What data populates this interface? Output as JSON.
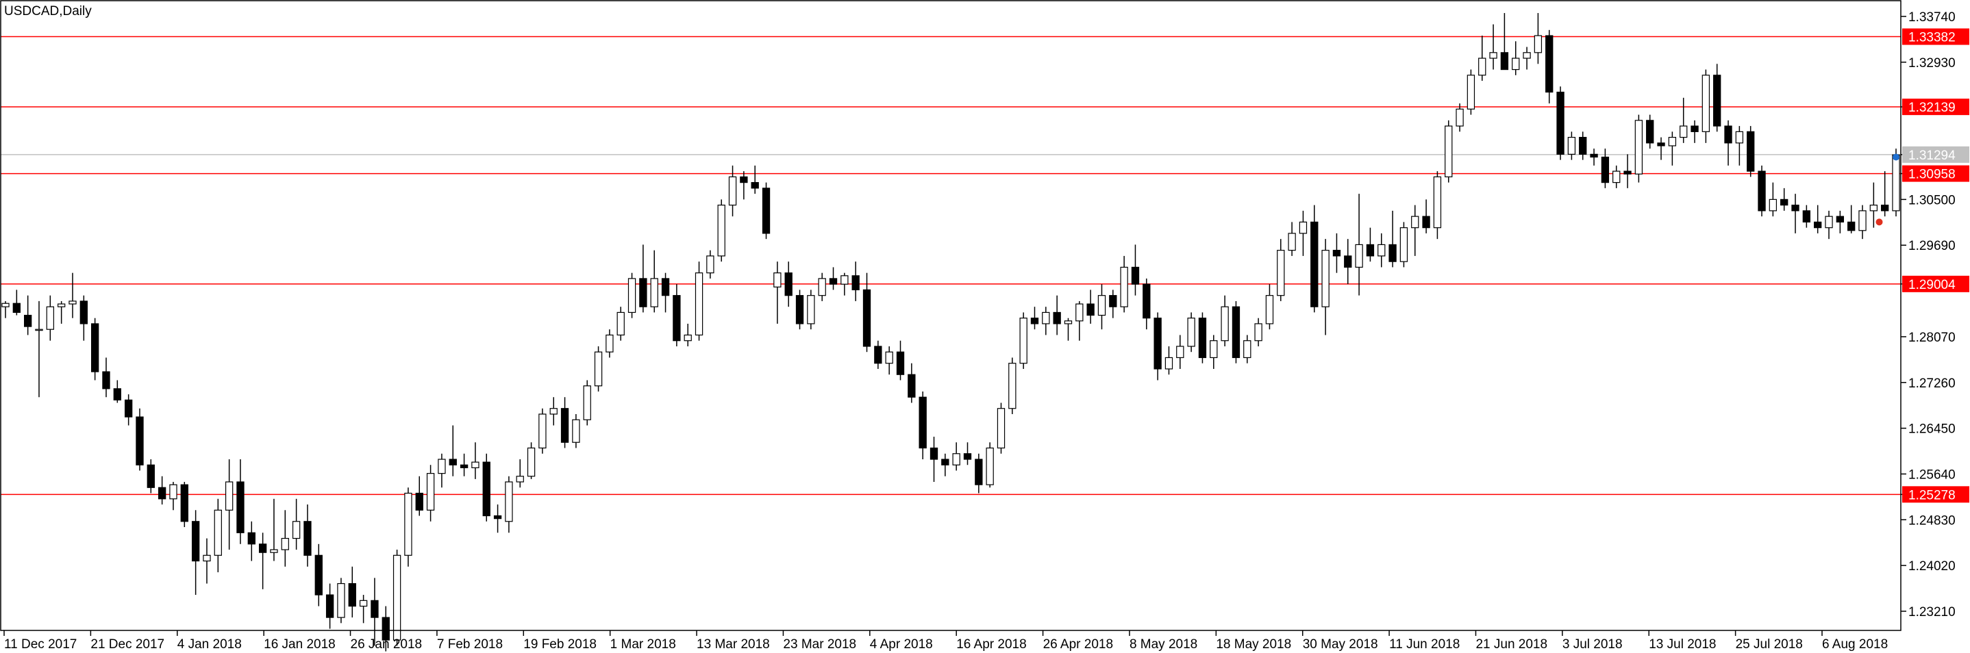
{
  "chart_data": {
    "type": "candlestick",
    "title": "USDCAD,Daily",
    "y_ticks": [
      "1.33740",
      "1.32930",
      "1.32139",
      "1.31294",
      "1.30958",
      "1.30500",
      "1.29690",
      "1.29004",
      "1.28070",
      "1.27260",
      "1.26450",
      "1.25640",
      "1.25278",
      "1.24830",
      "1.24020",
      "1.23210"
    ],
    "ylim": [
      1.2265,
      1.3398
    ],
    "x_ticks": [
      "11 Dec 2017",
      "21 Dec 2017",
      "4 Jan 2018",
      "16 Jan 2018",
      "26 Jan 2018",
      "7 Feb 2018",
      "19 Feb 2018",
      "1 Mar 2018",
      "13 Mar 2018",
      "23 Mar 2018",
      "4 Apr 2018",
      "16 Apr 2018",
      "26 Apr 2018",
      "8 May 2018",
      "18 May 2018",
      "30 May 2018",
      "11 Jun 2018",
      "21 Jun 2018",
      "3 Jul 2018",
      "13 Jul 2018",
      "25 Jul 2018",
      "6 Aug 2018"
    ],
    "horizontal_levels": [
      {
        "value": "1.33382",
        "color": "#ff0000"
      },
      {
        "value": "1.32139",
        "color": "#ff0000"
      },
      {
        "value": "1.30958",
        "color": "#ff0000"
      },
      {
        "value": "1.29004",
        "color": "#ff0000"
      },
      {
        "value": "1.25278",
        "color": "#ff0000"
      }
    ],
    "current_price": {
      "value": "1.31294",
      "color": "#c0c0c0"
    },
    "colors": {
      "bull_body": "#ffffff",
      "bear_body": "#000000",
      "wick": "#000000",
      "grid": "none"
    },
    "candles": [
      [
        1.286,
        1.287,
        1.284,
        1.2866
      ],
      [
        1.2866,
        1.289,
        1.2845,
        1.285
      ],
      [
        1.2845,
        1.288,
        1.281,
        1.2825
      ],
      [
        1.282,
        1.287,
        1.27,
        1.282
      ],
      [
        1.282,
        1.288,
        1.28,
        1.286
      ],
      [
        1.286,
        1.287,
        1.283,
        1.2865
      ],
      [
        1.2865,
        1.292,
        1.284,
        1.287
      ],
      [
        1.287,
        1.288,
        1.28,
        1.283
      ],
      [
        1.283,
        1.284,
        1.273,
        1.2745
      ],
      [
        1.2745,
        1.277,
        1.27,
        1.2715
      ],
      [
        1.2715,
        1.273,
        1.269,
        1.2695
      ],
      [
        1.2695,
        1.2705,
        1.265,
        1.2665
      ],
      [
        1.2665,
        1.268,
        1.257,
        1.258
      ],
      [
        1.258,
        1.259,
        1.253,
        1.254
      ],
      [
        1.254,
        1.256,
        1.251,
        1.252
      ],
      [
        1.252,
        1.255,
        1.25,
        1.2545
      ],
      [
        1.2545,
        1.255,
        1.247,
        1.248
      ],
      [
        1.248,
        1.25,
        1.235,
        1.241
      ],
      [
        1.241,
        1.245,
        1.237,
        1.242
      ],
      [
        1.242,
        1.252,
        1.239,
        1.25
      ],
      [
        1.25,
        1.259,
        1.243,
        1.255
      ],
      [
        1.255,
        1.259,
        1.244,
        1.246
      ],
      [
        1.246,
        1.248,
        1.241,
        1.244
      ],
      [
        1.244,
        1.246,
        1.236,
        1.2425
      ],
      [
        1.2425,
        1.252,
        1.241,
        1.243
      ],
      [
        1.243,
        1.25,
        1.24,
        1.245
      ],
      [
        1.245,
        1.252,
        1.243,
        1.248
      ],
      [
        1.248,
        1.251,
        1.24,
        1.242
      ],
      [
        1.242,
        1.244,
        1.233,
        1.235
      ],
      [
        1.235,
        1.237,
        1.229,
        1.231
      ],
      [
        1.231,
        1.238,
        1.23,
        1.237
      ],
      [
        1.237,
        1.24,
        1.231,
        1.233
      ],
      [
        1.233,
        1.235,
        1.23,
        1.234
      ],
      [
        1.234,
        1.238,
        1.226,
        1.231
      ],
      [
        1.231,
        1.233,
        1.225,
        1.227
      ],
      [
        1.227,
        1.243,
        1.226,
        1.242
      ],
      [
        1.242,
        1.254,
        1.24,
        1.253
      ],
      [
        1.253,
        1.256,
        1.249,
        1.25
      ],
      [
        1.25,
        1.258,
        1.248,
        1.2565
      ],
      [
        1.2565,
        1.26,
        1.254,
        1.259
      ],
      [
        1.259,
        1.265,
        1.256,
        1.258
      ],
      [
        1.258,
        1.26,
        1.256,
        1.2575
      ],
      [
        1.2575,
        1.262,
        1.2555,
        1.2585
      ],
      [
        1.2585,
        1.26,
        1.248,
        1.249
      ],
      [
        1.249,
        1.251,
        1.246,
        1.2485
      ],
      [
        1.248,
        1.256,
        1.246,
        1.255
      ],
      [
        1.255,
        1.259,
        1.254,
        1.256
      ],
      [
        1.256,
        1.262,
        1.2555,
        1.261
      ],
      [
        1.261,
        1.268,
        1.26,
        1.267
      ],
      [
        1.267,
        1.27,
        1.265,
        1.268
      ],
      [
        1.268,
        1.27,
        1.261,
        1.262
      ],
      [
        1.262,
        1.267,
        1.261,
        1.266
      ],
      [
        1.266,
        1.273,
        1.265,
        1.272
      ],
      [
        1.272,
        1.279,
        1.271,
        1.278
      ],
      [
        1.278,
        1.282,
        1.277,
        1.281
      ],
      [
        1.281,
        1.286,
        1.28,
        1.285
      ],
      [
        1.285,
        1.292,
        1.284,
        1.291
      ],
      [
        1.291,
        1.297,
        1.285,
        1.286
      ],
      [
        1.286,
        1.296,
        1.285,
        1.291
      ],
      [
        1.291,
        1.292,
        1.285,
        1.288
      ],
      [
        1.288,
        1.29,
        1.279,
        1.28
      ],
      [
        1.28,
        1.283,
        1.279,
        1.281
      ],
      [
        1.281,
        1.294,
        1.28,
        1.292
      ],
      [
        1.292,
        1.296,
        1.291,
        1.295
      ],
      [
        1.295,
        1.305,
        1.294,
        1.304
      ],
      [
        1.304,
        1.311,
        1.302,
        1.309
      ],
      [
        1.309,
        1.31,
        1.305,
        1.308
      ],
      [
        1.308,
        1.311,
        1.306,
        1.307
      ],
      [
        1.307,
        1.308,
        1.298,
        1.299
      ],
      [
        1.2895,
        1.294,
        1.283,
        1.292
      ],
      [
        1.292,
        1.294,
        1.286,
        1.288
      ],
      [
        1.288,
        1.289,
        1.282,
        1.283
      ],
      [
        1.283,
        1.289,
        1.282,
        1.288
      ],
      [
        1.288,
        1.292,
        1.287,
        1.291
      ],
      [
        1.291,
        1.293,
        1.289,
        1.29
      ],
      [
        1.29,
        1.292,
        1.288,
        1.2915
      ],
      [
        1.2915,
        1.294,
        1.287,
        1.289
      ],
      [
        1.289,
        1.292,
        1.278,
        1.279
      ],
      [
        1.279,
        1.28,
        1.275,
        1.276
      ],
      [
        1.276,
        1.279,
        1.274,
        1.278
      ],
      [
        1.278,
        1.28,
        1.273,
        1.274
      ],
      [
        1.274,
        1.276,
        1.269,
        1.27
      ],
      [
        1.27,
        1.271,
        1.259,
        1.261
      ],
      [
        1.261,
        1.263,
        1.255,
        1.259
      ],
      [
        1.259,
        1.26,
        1.256,
        1.258
      ],
      [
        1.258,
        1.262,
        1.257,
        1.26
      ],
      [
        1.26,
        1.262,
        1.258,
        1.259
      ],
      [
        1.259,
        1.26,
        1.253,
        1.2545
      ],
      [
        1.2545,
        1.262,
        1.254,
        1.261
      ],
      [
        1.261,
        1.269,
        1.26,
        1.268
      ],
      [
        1.268,
        1.277,
        1.267,
        1.276
      ],
      [
        1.276,
        1.285,
        1.275,
        1.284
      ],
      [
        1.284,
        1.286,
        1.282,
        1.283
      ],
      [
        1.283,
        1.286,
        1.281,
        1.285
      ],
      [
        1.285,
        1.288,
        1.281,
        1.283
      ],
      [
        1.283,
        1.284,
        1.28,
        1.2835
      ],
      [
        1.2835,
        1.287,
        1.28,
        1.2865
      ],
      [
        1.2865,
        1.289,
        1.283,
        1.2845
      ],
      [
        1.2845,
        1.29,
        1.282,
        1.288
      ],
      [
        1.288,
        1.289,
        1.284,
        1.286
      ],
      [
        1.286,
        1.295,
        1.285,
        1.293
      ],
      [
        1.293,
        1.297,
        1.288,
        1.29
      ],
      [
        1.29,
        1.291,
        1.282,
        1.284
      ],
      [
        1.284,
        1.285,
        1.273,
        1.275
      ],
      [
        1.275,
        1.279,
        1.274,
        1.277
      ],
      [
        1.277,
        1.281,
        1.275,
        1.279
      ],
      [
        1.279,
        1.285,
        1.278,
        1.284
      ],
      [
        1.284,
        1.285,
        1.276,
        1.277
      ],
      [
        1.277,
        1.281,
        1.275,
        1.28
      ],
      [
        1.28,
        1.288,
        1.279,
        1.286
      ],
      [
        1.286,
        1.287,
        1.276,
        1.277
      ],
      [
        1.277,
        1.281,
        1.276,
        1.28
      ],
      [
        1.28,
        1.284,
        1.279,
        1.283
      ],
      [
        1.283,
        1.29,
        1.282,
        1.288
      ],
      [
        1.288,
        1.298,
        1.287,
        1.296
      ],
      [
        1.296,
        1.301,
        1.295,
        1.299
      ],
      [
        1.299,
        1.303,
        1.295,
        1.301
      ],
      [
        1.301,
        1.304,
        1.285,
        1.286
      ],
      [
        1.286,
        1.298,
        1.281,
        1.296
      ],
      [
        1.296,
        1.299,
        1.292,
        1.295
      ],
      [
        1.295,
        1.298,
        1.29,
        1.293
      ],
      [
        1.293,
        1.306,
        1.288,
        1.297
      ],
      [
        1.297,
        1.3,
        1.294,
        1.295
      ],
      [
        1.295,
        1.299,
        1.293,
        1.297
      ],
      [
        1.297,
        1.303,
        1.293,
        1.294
      ],
      [
        1.294,
        1.301,
        1.293,
        1.3
      ],
      [
        1.3,
        1.304,
        1.295,
        1.302
      ],
      [
        1.302,
        1.305,
        1.299,
        1.3
      ],
      [
        1.3,
        1.31,
        1.298,
        1.309
      ],
      [
        1.309,
        1.319,
        1.308,
        1.318
      ],
      [
        1.318,
        1.322,
        1.317,
        1.321
      ],
      [
        1.321,
        1.328,
        1.32,
        1.327
      ],
      [
        1.327,
        1.334,
        1.326,
        1.33
      ],
      [
        1.33,
        1.336,
        1.328,
        1.331
      ],
      [
        1.331,
        1.338,
        1.329,
        1.328
      ],
      [
        1.328,
        1.333,
        1.327,
        1.33
      ],
      [
        1.33,
        1.332,
        1.328,
        1.331
      ],
      [
        1.331,
        1.338,
        1.329,
        1.334
      ],
      [
        1.334,
        1.335,
        1.322,
        1.324
      ],
      [
        1.324,
        1.325,
        1.312,
        1.313
      ],
      [
        1.313,
        1.317,
        1.312,
        1.316
      ],
      [
        1.316,
        1.317,
        1.312,
        1.313
      ],
      [
        1.313,
        1.314,
        1.311,
        1.3125
      ],
      [
        1.3125,
        1.314,
        1.307,
        1.308
      ],
      [
        1.308,
        1.311,
        1.307,
        1.31
      ],
      [
        1.31,
        1.313,
        1.307,
        1.3095
      ],
      [
        1.3095,
        1.32,
        1.308,
        1.319
      ],
      [
        1.319,
        1.32,
        1.314,
        1.315
      ],
      [
        1.315,
        1.316,
        1.312,
        1.3145
      ],
      [
        1.3145,
        1.317,
        1.311,
        1.316
      ],
      [
        1.316,
        1.323,
        1.315,
        1.318
      ],
      [
        1.318,
        1.319,
        1.315,
        1.317
      ],
      [
        1.317,
        1.328,
        1.315,
        1.327
      ],
      [
        1.327,
        1.329,
        1.317,
        1.318
      ],
      [
        1.318,
        1.319,
        1.311,
        1.315
      ],
      [
        1.315,
        1.318,
        1.311,
        1.317
      ],
      [
        1.317,
        1.318,
        1.309,
        1.31
      ],
      [
        1.31,
        1.311,
        1.302,
        1.303
      ],
      [
        1.303,
        1.308,
        1.302,
        1.305
      ],
      [
        1.305,
        1.307,
        1.303,
        1.304
      ],
      [
        1.304,
        1.306,
        1.299,
        1.303
      ],
      [
        1.303,
        1.304,
        1.3,
        1.301
      ],
      [
        1.301,
        1.304,
        1.299,
        1.3
      ],
      [
        1.3,
        1.303,
        1.298,
        1.302
      ],
      [
        1.302,
        1.303,
        1.299,
        1.301
      ],
      [
        1.301,
        1.304,
        1.299,
        1.2995
      ],
      [
        1.2995,
        1.304,
        1.298,
        1.303
      ],
      [
        1.303,
        1.308,
        1.3,
        1.304
      ],
      [
        1.304,
        1.31,
        1.302,
        1.303
      ],
      [
        1.303,
        1.314,
        1.302,
        1.3129
      ]
    ]
  }
}
